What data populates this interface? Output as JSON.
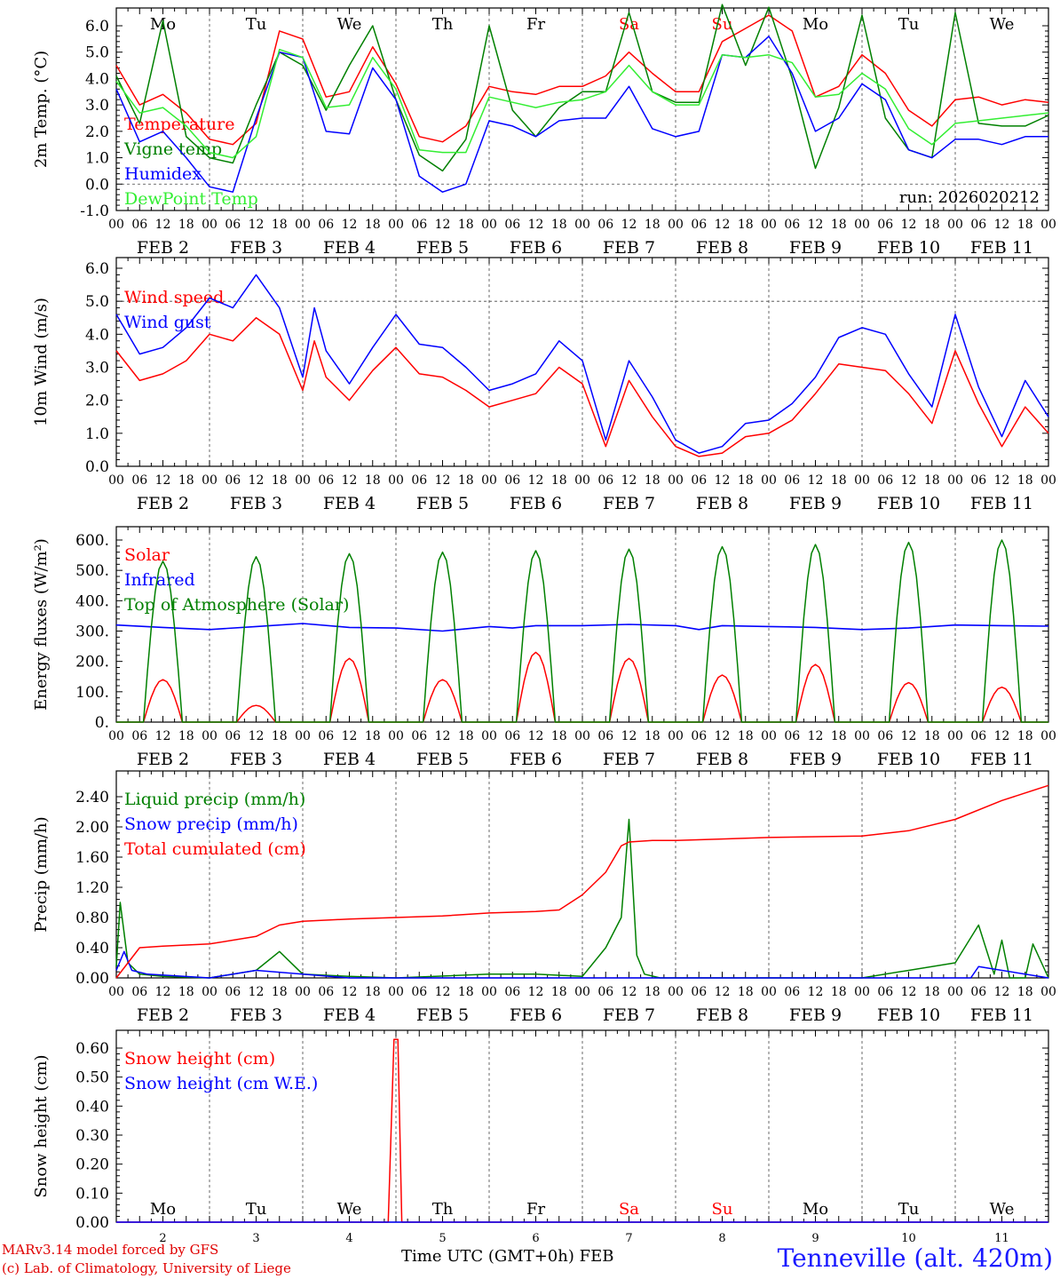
{
  "run_label": "run: 2026020212",
  "station": "Tenneville (alt. 420m)",
  "credit": [
    "MARv3.14 model forced by GFS",
    "(c) Lab. of Climatology, University of Liege"
  ],
  "time_axis_label": "Time UTC (GMT+0h)",
  "month_label": "FEB",
  "colors": {
    "red": "#ff0000",
    "green": "#008000",
    "blue": "#0000ff",
    "lightgreen": "#33ee33",
    "grid": "#444444"
  },
  "hour_ticks": [
    "00",
    "06",
    "12",
    "18"
  ],
  "date_labels": [
    "FEB  2",
    "FEB  3",
    "FEB  4",
    "FEB  5",
    "FEB  6",
    "FEB  7",
    "FEB  8",
    "FEB  9",
    "FEB 10",
    "FEB 11"
  ],
  "bottom_day_numbers": [
    "2",
    "3",
    "4",
    "5",
    "6",
    "7",
    "8",
    "9",
    "10",
    "11"
  ],
  "weekdays": [
    {
      "label": "Mo",
      "weekend": false
    },
    {
      "label": "Tu",
      "weekend": false
    },
    {
      "label": "We",
      "weekend": false
    },
    {
      "label": "Th",
      "weekend": false
    },
    {
      "label": "Fr",
      "weekend": false
    },
    {
      "label": "Sa",
      "weekend": true
    },
    {
      "label": "Su",
      "weekend": true
    },
    {
      "label": "Mo",
      "weekend": false
    },
    {
      "label": "Tu",
      "weekend": false
    },
    {
      "label": "We",
      "weekend": false
    }
  ],
  "chart_data": [
    {
      "type": "line",
      "id": "temp",
      "ylabel": "2m Temp. (°C)",
      "ylim": [
        -1,
        6.5
      ],
      "yticks": [
        "-1.0",
        "0.0",
        "1.0",
        "2.0",
        "3.0",
        "4.0",
        "5.0",
        "6.0"
      ],
      "dashed_ref": 0,
      "x_unit": "hours since FEB 2 00 UTC",
      "series": [
        {
          "name": "Temperature",
          "color": "red",
          "x": [
            0,
            6,
            12,
            18,
            24,
            30,
            36,
            42,
            48,
            54,
            60,
            66,
            72,
            78,
            84,
            90,
            96,
            102,
            108,
            114,
            120,
            126,
            132,
            138,
            144,
            150,
            156,
            162,
            168,
            174,
            180,
            186,
            192,
            198,
            204,
            210,
            216,
            222,
            228,
            234,
            240
          ],
          "values": [
            4.5,
            3.0,
            3.4,
            2.7,
            1.7,
            1.5,
            2.3,
            5.8,
            5.5,
            3.3,
            3.5,
            5.2,
            3.8,
            1.8,
            1.6,
            2.2,
            3.7,
            3.5,
            3.4,
            3.7,
            3.7,
            4.1,
            5.0,
            4.2,
            3.5,
            3.5,
            5.4,
            5.9,
            6.4,
            5.8,
            3.3,
            3.7,
            4.9,
            4.2,
            2.8,
            2.2,
            3.2,
            3.3,
            3.0,
            3.2,
            3.1
          ]
        },
        {
          "name": "Vigne temp",
          "color": "green",
          "x": [
            0,
            6,
            12,
            18,
            24,
            30,
            36,
            42,
            48,
            54,
            60,
            66,
            72,
            78,
            84,
            90,
            96,
            102,
            108,
            114,
            120,
            126,
            132,
            138,
            144,
            150,
            156,
            162,
            168,
            174,
            180,
            186,
            192,
            198,
            204,
            210,
            216,
            222,
            228,
            234,
            240
          ],
          "values": [
            4.1,
            2.3,
            6.2,
            1.8,
            1.0,
            0.8,
            3.0,
            5.0,
            4.5,
            2.8,
            4.5,
            6.0,
            3.2,
            1.1,
            0.5,
            1.7,
            6.0,
            2.8,
            1.8,
            2.9,
            3.5,
            3.5,
            6.5,
            3.5,
            3.1,
            3.1,
            6.8,
            4.5,
            6.7,
            4.0,
            0.6,
            2.9,
            6.4,
            2.5,
            1.3,
            1.0,
            6.5,
            2.3,
            2.2,
            2.2,
            2.6
          ]
        },
        {
          "name": "Humidex",
          "color": "blue",
          "x": [
            0,
            6,
            12,
            18,
            24,
            30,
            36,
            42,
            48,
            54,
            60,
            66,
            72,
            78,
            84,
            90,
            96,
            102,
            108,
            114,
            120,
            126,
            132,
            138,
            144,
            150,
            156,
            162,
            168,
            174,
            180,
            186,
            192,
            198,
            204,
            210,
            216,
            222,
            228,
            234,
            240
          ],
          "values": [
            3.6,
            1.6,
            2.0,
            1.0,
            -0.1,
            -0.3,
            2.5,
            5.0,
            4.8,
            2.0,
            1.9,
            4.4,
            3.2,
            0.3,
            -0.3,
            0.0,
            2.4,
            2.2,
            1.8,
            2.4,
            2.5,
            2.5,
            3.7,
            2.1,
            1.8,
            2.0,
            4.9,
            4.8,
            5.6,
            4.2,
            2.0,
            2.5,
            3.8,
            3.2,
            1.3,
            1.0,
            1.7,
            1.7,
            1.5,
            1.8,
            1.8
          ]
        },
        {
          "name": "DewPoint Temp",
          "color": "lightgreen",
          "x": [
            0,
            6,
            12,
            18,
            24,
            30,
            36,
            42,
            48,
            54,
            60,
            66,
            72,
            78,
            84,
            90,
            96,
            102,
            108,
            114,
            120,
            126,
            132,
            138,
            144,
            150,
            156,
            162,
            168,
            174,
            180,
            186,
            192,
            198,
            204,
            210,
            216,
            222,
            228,
            234,
            240
          ],
          "values": [
            3.9,
            2.7,
            2.9,
            2.2,
            1.2,
            1.0,
            1.8,
            5.1,
            4.8,
            2.9,
            3.0,
            4.8,
            3.6,
            1.3,
            1.2,
            1.2,
            3.3,
            3.1,
            2.9,
            3.1,
            3.2,
            3.5,
            4.5,
            3.5,
            3.0,
            3.0,
            4.9,
            4.8,
            4.9,
            4.6,
            3.3,
            3.4,
            4.2,
            3.6,
            2.1,
            1.5,
            2.3,
            2.4,
            2.5,
            2.6,
            2.7
          ]
        }
      ]
    },
    {
      "type": "line",
      "id": "wind",
      "ylabel": "10m Wind (m/s)",
      "ylim": [
        0,
        6.2
      ],
      "yticks": [
        "0.0",
        "1.0",
        "2.0",
        "3.0",
        "4.0",
        "5.0",
        "6.0"
      ],
      "dashed_ref": 5,
      "series": [
        {
          "name": "Wind speed",
          "color": "red",
          "x": [
            0,
            6,
            12,
            18,
            24,
            30,
            36,
            42,
            48,
            51,
            54,
            60,
            66,
            72,
            78,
            84,
            90,
            96,
            102,
            108,
            114,
            120,
            126,
            132,
            138,
            144,
            150,
            156,
            162,
            168,
            174,
            180,
            186,
            192,
            198,
            204,
            210,
            216,
            222,
            228,
            234,
            240
          ],
          "values": [
            3.5,
            2.6,
            2.8,
            3.2,
            4.0,
            3.8,
            4.5,
            4.0,
            2.3,
            3.8,
            2.7,
            2.0,
            2.9,
            3.6,
            2.8,
            2.7,
            2.3,
            1.8,
            2.0,
            2.2,
            3.0,
            2.5,
            0.6,
            2.6,
            1.5,
            0.6,
            0.3,
            0.4,
            0.9,
            1.0,
            1.4,
            2.2,
            3.1,
            3.0,
            2.9,
            2.2,
            1.3,
            3.5,
            1.9,
            0.6,
            1.8,
            1.0
          ]
        },
        {
          "name": "Wind gust",
          "color": "blue",
          "x": [
            0,
            6,
            12,
            18,
            24,
            30,
            36,
            42,
            48,
            51,
            54,
            60,
            66,
            72,
            78,
            84,
            90,
            96,
            102,
            108,
            114,
            120,
            126,
            132,
            138,
            144,
            150,
            156,
            162,
            168,
            174,
            180,
            186,
            192,
            198,
            204,
            210,
            216,
            222,
            228,
            234,
            240
          ],
          "values": [
            4.6,
            3.4,
            3.6,
            4.2,
            5.1,
            4.8,
            5.8,
            4.8,
            2.7,
            4.8,
            3.5,
            2.5,
            3.6,
            4.6,
            3.7,
            3.6,
            3.0,
            2.3,
            2.5,
            2.8,
            3.8,
            3.2,
            0.8,
            3.2,
            2.1,
            0.8,
            0.4,
            0.6,
            1.3,
            1.4,
            1.9,
            2.7,
            3.9,
            4.2,
            4.0,
            2.8,
            1.8,
            4.6,
            2.4,
            0.9,
            2.6,
            1.5
          ]
        }
      ]
    },
    {
      "type": "line",
      "id": "energy",
      "ylabel": "Energy fluxes (W/m²)",
      "ylim": [
        0,
        650
      ],
      "yticks": [
        "0.",
        "100.",
        "200.",
        "300.",
        "400.",
        "500.",
        "600."
      ],
      "series": [
        {
          "name": "Solar",
          "color": "red",
          "peaks": [
            140,
            55,
            210,
            140,
            230,
            210,
            155,
            190,
            130,
            115
          ]
        },
        {
          "name": "Infrared",
          "color": "blue",
          "x": [
            0,
            12,
            24,
            36,
            48,
            60,
            72,
            84,
            96,
            102,
            108,
            120,
            132,
            144,
            150,
            156,
            168,
            180,
            192,
            204,
            216,
            228,
            240
          ],
          "values": [
            320,
            312,
            305,
            315,
            325,
            312,
            310,
            300,
            315,
            310,
            318,
            318,
            322,
            318,
            305,
            318,
            315,
            312,
            305,
            310,
            320,
            318,
            316
          ]
        },
        {
          "name": "Top of Atmosphere (Solar)",
          "color": "green",
          "peaks": [
            530,
            545,
            555,
            560,
            565,
            570,
            578,
            585,
            592,
            600
          ]
        }
      ]
    },
    {
      "type": "line",
      "id": "precip",
      "ylabel": "Precip (mm/h)",
      "ylim": [
        0,
        2.6
      ],
      "yticks": [
        "0.00",
        "0.40",
        "0.80",
        "1.20",
        "1.60",
        "2.00",
        "2.40"
      ],
      "series": [
        {
          "name": "Liquid precip (mm/h)",
          "color": "green",
          "x": [
            0,
            1,
            3,
            6,
            12,
            24,
            36,
            42,
            48,
            60,
            72,
            96,
            108,
            120,
            126,
            130,
            132,
            134,
            136,
            140,
            150,
            180,
            192,
            216,
            222,
            226,
            228,
            230,
            234,
            236,
            240
          ],
          "values": [
            0.15,
            1.0,
            0.2,
            0.05,
            0.02,
            0.0,
            0.1,
            0.35,
            0.05,
            0.02,
            0.0,
            0.05,
            0.05,
            0.02,
            0.4,
            0.8,
            2.1,
            0.3,
            0.05,
            0.0,
            0.0,
            0.0,
            0.0,
            0.2,
            0.7,
            0.05,
            0.5,
            0.0,
            0.0,
            0.45,
            0.0
          ]
        },
        {
          "name": "Snow precip (mm/h)",
          "color": "blue",
          "x": [
            0,
            2,
            4,
            8,
            24,
            36,
            60,
            96,
            120,
            150,
            168,
            192,
            220,
            222,
            240
          ],
          "values": [
            0.1,
            0.35,
            0.1,
            0.05,
            0.0,
            0.1,
            0.0,
            0.0,
            0.0,
            0.0,
            0.0,
            0.0,
            0.0,
            0.15,
            0.0
          ]
        },
        {
          "name": "Total cumulated (cm)",
          "color": "red",
          "x": [
            0,
            6,
            12,
            24,
            36,
            42,
            48,
            60,
            72,
            84,
            96,
            108,
            114,
            120,
            126,
            130,
            132,
            138,
            144,
            156,
            168,
            192,
            204,
            216,
            228,
            240
          ],
          "values": [
            0.0,
            0.4,
            0.42,
            0.45,
            0.55,
            0.7,
            0.75,
            0.78,
            0.8,
            0.82,
            0.86,
            0.88,
            0.9,
            1.1,
            1.4,
            1.75,
            1.8,
            1.82,
            1.82,
            1.84,
            1.86,
            1.88,
            1.95,
            2.1,
            2.35,
            2.55
          ]
        }
      ]
    },
    {
      "type": "line",
      "id": "snow",
      "ylabel": "Snow height (cm)",
      "ylim": [
        0,
        0.66
      ],
      "yticks": [
        "0.00",
        "0.10",
        "0.20",
        "0.30",
        "0.40",
        "0.50",
        "0.60"
      ],
      "series": [
        {
          "name": "Snow height (cm)",
          "color": "red",
          "x": [
            0,
            70,
            71.5,
            72.5,
            73.5,
            240
          ],
          "values": [
            0,
            0,
            0.63,
            0.63,
            0,
            0
          ]
        },
        {
          "name": "Snow height (cm W.E.)",
          "color": "blue",
          "x": [
            0,
            240
          ],
          "values": [
            0,
            0
          ]
        }
      ]
    }
  ]
}
